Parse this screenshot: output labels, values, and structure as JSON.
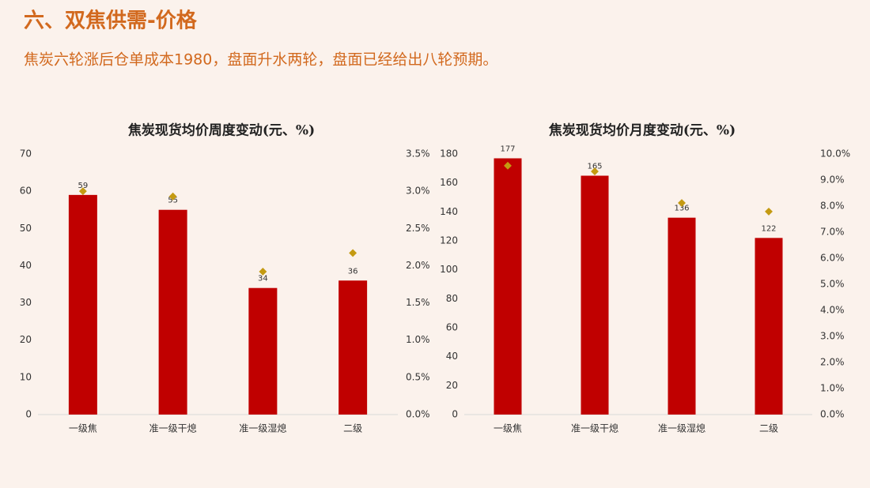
{
  "header": {
    "title": "六、双焦供需-价格",
    "subtitle": "焦炭六轮涨后仓单成本1980，盘面升水两轮，盘面已经给出八轮预期。"
  },
  "chart_data": [
    {
      "type": "bar",
      "title": "焦炭现货均价周度变动(元、%)",
      "categories": [
        "一级焦",
        "准一级干熄",
        "准一级湿熄",
        "二级"
      ],
      "series": [
        {
          "type": "bar",
          "color": "#c00000",
          "values": [
            59,
            55,
            34,
            36
          ]
        },
        {
          "type": "scatter",
          "marker": "diamond",
          "color": "#c49a12",
          "axis": "y2",
          "values": [
            3.0,
            2.93,
            1.92,
            2.17
          ]
        }
      ],
      "ylim": [
        0,
        70
      ],
      "yticks": [
        0,
        10,
        20,
        30,
        40,
        50,
        60,
        70
      ],
      "y2lim": [
        0,
        3.5
      ],
      "y2ticks": [
        {
          "value": 0,
          "label": "0.0%"
        },
        {
          "value": 0.5,
          "label": "0.5%"
        },
        {
          "value": 1,
          "label": "1.0%"
        },
        {
          "value": 1.5,
          "label": "1.5%"
        },
        {
          "value": 2,
          "label": "2.0%"
        },
        {
          "value": 2.5,
          "label": "2.5%"
        },
        {
          "value": 3,
          "label": "3.0%"
        },
        {
          "value": 3.5,
          "label": "3.5%"
        }
      ],
      "grid": false,
      "data_labels": true
    },
    {
      "type": "bar",
      "title": "焦炭现货均价月度变动(元、%)",
      "categories": [
        "一级焦",
        "准一级干熄",
        "准一级湿熄",
        "二级"
      ],
      "series": [
        {
          "type": "bar",
          "color": "#c00000",
          "values": [
            177,
            165,
            136,
            122
          ]
        },
        {
          "type": "scatter",
          "marker": "diamond",
          "color": "#c49a12",
          "axis": "y2",
          "values": [
            9.55,
            9.33,
            8.12,
            7.79
          ]
        }
      ],
      "ylim": [
        0,
        180
      ],
      "yticks": [
        0,
        20,
        40,
        60,
        80,
        100,
        120,
        140,
        160,
        180
      ],
      "y2lim": [
        0,
        10
      ],
      "y2ticks": [
        {
          "value": 0,
          "label": "0.0%"
        },
        {
          "value": 1,
          "label": "1.0%"
        },
        {
          "value": 2,
          "label": "2.0%"
        },
        {
          "value": 3,
          "label": "3.0%"
        },
        {
          "value": 4,
          "label": "4.0%"
        },
        {
          "value": 5,
          "label": "5.0%"
        },
        {
          "value": 6,
          "label": "6.0%"
        },
        {
          "value": 7,
          "label": "7.0%"
        },
        {
          "value": 8,
          "label": "8.0%"
        },
        {
          "value": 9,
          "label": "9.0%"
        },
        {
          "value": 10,
          "label": "10.0%"
        }
      ],
      "grid": false,
      "data_labels": true
    }
  ]
}
